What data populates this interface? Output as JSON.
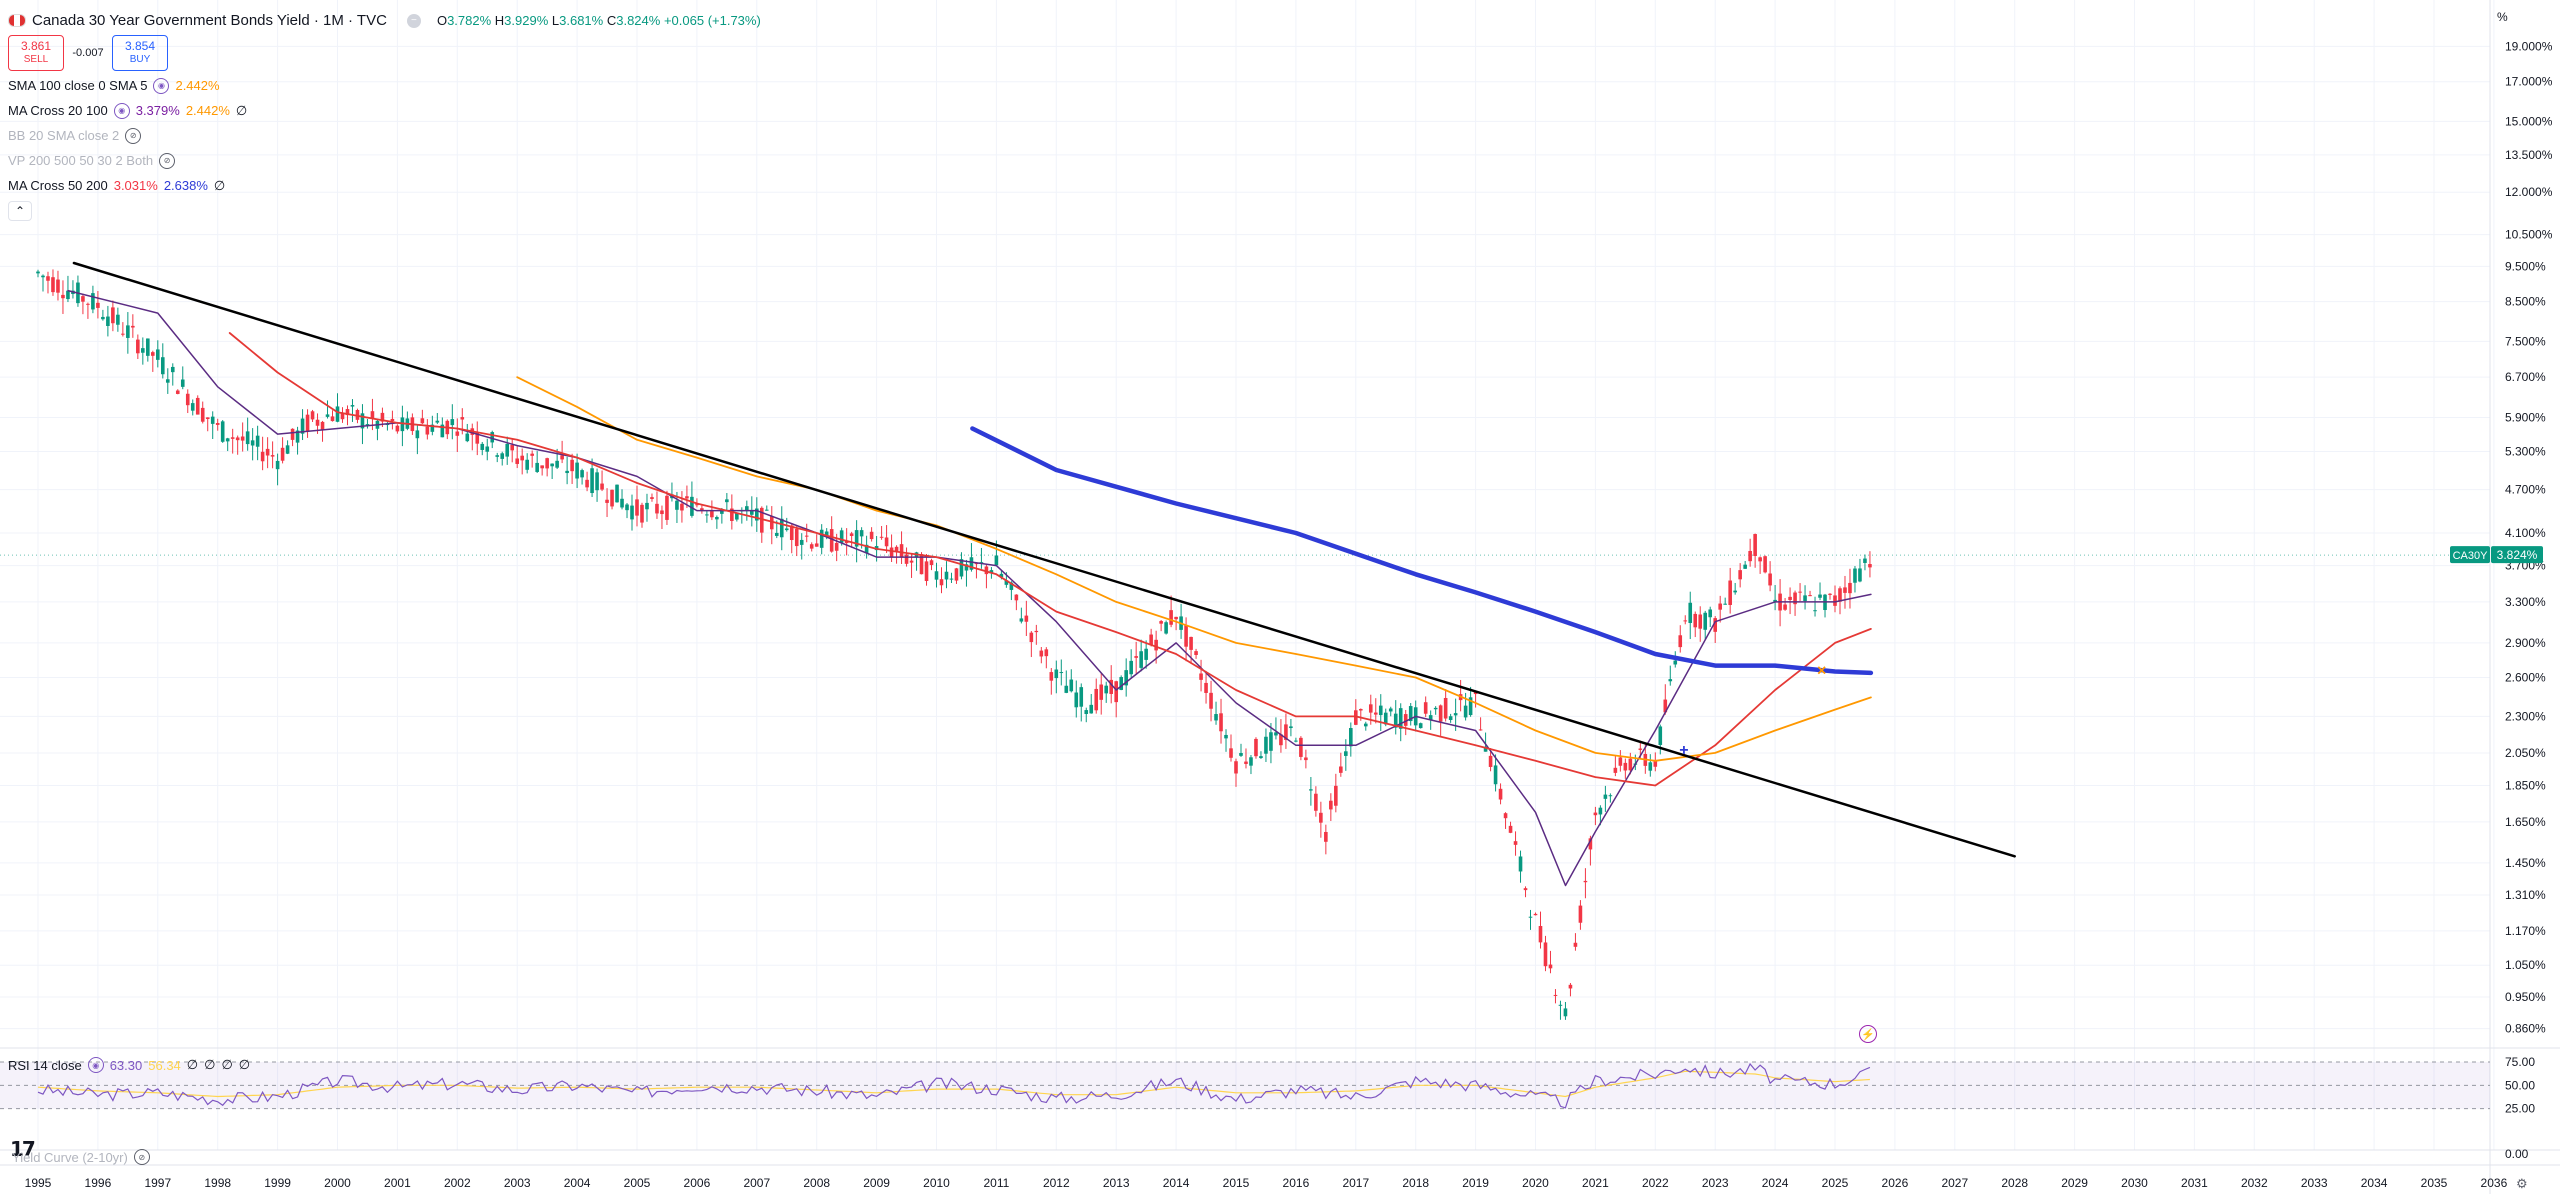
{
  "header": {
    "title": "Canada 30 Year Government Bonds Yield · 1M · TVC",
    "ohlc": [
      {
        "k": "O",
        "v": "3.782%"
      },
      {
        "k": "H",
        "v": "3.929%"
      },
      {
        "k": "L",
        "v": "3.681%"
      },
      {
        "k": "C",
        "v": "3.824%"
      }
    ],
    "change": "+0.065 (+1.73%)",
    "sell_price": "3.861",
    "sell_label": "SELL",
    "spread": "-0.007",
    "buy_price": "3.854",
    "buy_label": "BUY"
  },
  "indicators": [
    {
      "name": "SMA 100 close 0 SMA 5",
      "values": [
        "2.442%"
      ],
      "colors": [
        "#ff9800"
      ],
      "hidden": false
    },
    {
      "name": "MA Cross 20 100",
      "values": [
        "3.379%",
        "2.442%",
        "∅"
      ],
      "colors": [
        "#7b1fa2",
        "#ff9800",
        "#131722"
      ],
      "hidden": false
    },
    {
      "name": "BB 20 SMA close 2",
      "values": [],
      "colors": [],
      "hidden": true
    },
    {
      "name": "VP 200 500 50 30 2 Both",
      "values": [],
      "colors": [],
      "hidden": true
    },
    {
      "name": "MA Cross 50 200",
      "values": [
        "3.031%",
        "2.638%",
        "∅"
      ],
      "colors": [
        "#f23645",
        "#2e3bd6",
        "#131722"
      ],
      "hidden": false
    }
  ],
  "rsi": {
    "name": "RSI 14 close",
    "values": [
      "63.30",
      "56.34",
      "∅",
      "∅",
      "∅",
      "∅"
    ],
    "colors": [
      "#7e57c2",
      "#ffd54f",
      "#131722",
      "#131722",
      "#131722",
      "#131722"
    ],
    "levels": [
      "75.00",
      "50.00",
      "25.00",
      "0.00"
    ]
  },
  "yield_curve_label": "Yield Curve (2-10yr)",
  "price_axis": {
    "unit": "%",
    "ticks": [
      "19.000%",
      "17.000%",
      "15.000%",
      "13.500%",
      "12.000%",
      "10.500%",
      "9.500%",
      "8.500%",
      "7.500%",
      "6.700%",
      "5.900%",
      "5.300%",
      "4.700%",
      "4.100%",
      "3.700%",
      "3.300%",
      "2.900%",
      "2.600%",
      "2.300%",
      "2.050%",
      "1.850%",
      "1.650%",
      "1.450%",
      "1.310%",
      "1.170%",
      "1.050%",
      "0.950%",
      "0.860%"
    ],
    "current_symbol": "CA30Y",
    "current_value": "3.824%"
  },
  "time_axis": {
    "ticks": [
      "1995",
      "1996",
      "1997",
      "1998",
      "1999",
      "2000",
      "2001",
      "2002",
      "2003",
      "2004",
      "2005",
      "2006",
      "2007",
      "2008",
      "2009",
      "2010",
      "2011",
      "2012",
      "2013",
      "2014",
      "2015",
      "2016",
      "2017",
      "2018",
      "2019",
      "2020",
      "2021",
      "2022",
      "2023",
      "2024",
      "2025",
      "2026",
      "2027",
      "2028",
      "2029",
      "2030",
      "2031",
      "2032",
      "2033",
      "2034",
      "2035",
      "2036"
    ]
  },
  "chart_data": {
    "type": "line",
    "scale": "log",
    "ylim": [
      0.8,
      20
    ],
    "price": {
      "x": [
        1995,
        1996,
        1997,
        1998,
        1999,
        1999.5,
        2000,
        2001,
        2002,
        2003,
        2004,
        2005,
        2006,
        2007,
        2008,
        2009,
        2010,
        2011,
        2012,
        2012.5,
        2013,
        2014,
        2015,
        2016,
        2016.5,
        2017,
        2018,
        2019,
        2020,
        2020.5,
        2021,
        2021.5,
        2022,
        2022.5,
        2023,
        2023.7,
        2024,
        2025,
        2025.6
      ],
      "y": [
        9.3,
        8.4,
        7.1,
        5.7,
        5.2,
        5.8,
        6.0,
        5.7,
        5.8,
        5.2,
        5.0,
        4.4,
        4.5,
        4.3,
        4.0,
        4.0,
        3.6,
        3.7,
        2.6,
        2.4,
        2.5,
        3.2,
        2.0,
        2.2,
        1.6,
        2.3,
        2.3,
        2.4,
        1.2,
        0.9,
        1.7,
        2.0,
        2.0,
        3.2,
        3.1,
        4.0,
        3.3,
        3.3,
        3.824
      ]
    },
    "series": [
      {
        "name": "MA Cross 20 100",
        "color": "#5b2c83",
        "x": [
          1995.5,
          1997,
          1998,
          1999,
          2000,
          2001,
          2002,
          2003,
          2004,
          2005,
          2006,
          2007,
          2008,
          2009,
          2010,
          2011,
          2012,
          2013,
          2014,
          2015,
          2016,
          2017,
          2018,
          2019,
          2020,
          2020.5,
          2021,
          2022,
          2023,
          2024,
          2025,
          2025.6
        ],
        "y": [
          8.8,
          8.2,
          6.5,
          5.6,
          5.7,
          5.8,
          5.7,
          5.4,
          5.2,
          4.9,
          4.4,
          4.4,
          4.1,
          3.8,
          3.8,
          3.7,
          3.1,
          2.5,
          2.9,
          2.4,
          2.1,
          2.1,
          2.3,
          2.2,
          1.7,
          1.35,
          1.6,
          2.2,
          3.1,
          3.3,
          3.3,
          3.379
        ]
      },
      {
        "name": "MA Cross 50 200",
        "color": "#e53935",
        "x": [
          1998.2,
          1999,
          2000,
          2001,
          2002,
          2003,
          2004,
          2005,
          2006,
          2007,
          2008,
          2009,
          2010,
          2011,
          2012,
          2013,
          2014,
          2015,
          2016,
          2017,
          2018,
          2019,
          2020,
          2021,
          2022,
          2023,
          2024,
          2025,
          2025.6
        ],
        "y": [
          7.7,
          6.8,
          6.0,
          5.8,
          5.7,
          5.5,
          5.2,
          4.8,
          4.5,
          4.3,
          4.1,
          3.9,
          3.8,
          3.6,
          3.2,
          3.0,
          2.8,
          2.5,
          2.3,
          2.3,
          2.2,
          2.1,
          2.0,
          1.9,
          1.85,
          2.1,
          2.5,
          2.9,
          3.031
        ]
      },
      {
        "name": "SMA 100 close 0 SMA 5",
        "color": "#ff9800",
        "x": [
          2003,
          2004,
          2005,
          2006,
          2007,
          2008,
          2009,
          2010,
          2011,
          2012,
          2013,
          2014,
          2015,
          2016,
          2017,
          2018,
          2019,
          2020,
          2021,
          2022,
          2023,
          2024,
          2025,
          2025.6
        ],
        "y": [
          6.7,
          6.1,
          5.5,
          5.2,
          4.9,
          4.7,
          4.4,
          4.2,
          3.9,
          3.6,
          3.3,
          3.1,
          2.9,
          2.8,
          2.7,
          2.6,
          2.4,
          2.2,
          2.05,
          2.0,
          2.05,
          2.2,
          2.35,
          2.442
        ]
      },
      {
        "name": "MA Cross 50 200",
        "color": "#2e3bd6",
        "x": [
          2010.6,
          2012,
          2014,
          2016,
          2018,
          2019,
          2020,
          2021,
          2022,
          2023,
          2024,
          2025,
          2025.6
        ],
        "y": [
          5.7,
          5.0,
          4.5,
          4.1,
          3.6,
          3.4,
          3.2,
          3.0,
          2.8,
          2.7,
          2.7,
          2.65,
          2.638
        ]
      },
      {
        "name": "",
        "color": "#000000",
        "x": [
          1995.6,
          2028
        ],
        "y": [
          9.6,
          1.48
        ]
      }
    ],
    "rsi": {
      "x": [
        1995,
        1996,
        1997,
        1998,
        1999,
        2000,
        2001,
        2002,
        2003,
        2004,
        2005,
        2006,
        2007,
        2008,
        2009,
        2010,
        2011,
        2012,
        2013,
        2014,
        2015,
        2016,
        2017,
        2018,
        2019,
        2020,
        2020.5,
        2021,
        2022,
        2022.5,
        2023,
        2023.7,
        2024,
        2025,
        2025.6
      ],
      "y": [
        45,
        40,
        42,
        35,
        38,
        55,
        48,
        52,
        45,
        50,
        42,
        50,
        48,
        44,
        38,
        52,
        46,
        36,
        40,
        55,
        35,
        45,
        38,
        55,
        50,
        38,
        32,
        55,
        62,
        70,
        62,
        68,
        55,
        52,
        63.3
      ],
      "ma": [
        48,
        44,
        42,
        38,
        40,
        48,
        50,
        50,
        47,
        48,
        46,
        48,
        48,
        45,
        42,
        46,
        46,
        40,
        40,
        48,
        42,
        42,
        44,
        50,
        50,
        42,
        38,
        48,
        58,
        65,
        64,
        62,
        58,
        54,
        56.34
      ],
      "ylim": [
        0,
        75
      ]
    }
  }
}
